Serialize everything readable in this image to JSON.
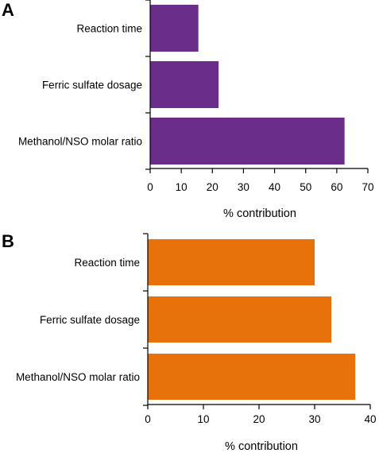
{
  "chart_data": [
    {
      "panel": "A",
      "type": "bar",
      "orientation": "horizontal",
      "categories": [
        "Reaction time",
        "Ferric sulfate dosage",
        "Methanol/NSO molar ratio"
      ],
      "values": [
        15.5,
        22,
        62.5
      ],
      "xlabel": "% contribution",
      "xlim": [
        0,
        70
      ],
      "xticks": [
        0,
        10,
        20,
        30,
        40,
        50,
        60,
        70
      ],
      "bar_color": "#6a2d8a",
      "grid": false,
      "legend": "none"
    },
    {
      "panel": "B",
      "type": "bar",
      "orientation": "horizontal",
      "categories": [
        "Reaction time",
        "Ferric sulfate dosage",
        "Methanol/NSO molar ratio"
      ],
      "values": [
        30,
        33,
        37.3
      ],
      "xlabel": "% contribution",
      "xlim": [
        0,
        40
      ],
      "xticks": [
        0,
        10,
        20,
        30,
        40
      ],
      "bar_color": "#e8710a",
      "grid": false,
      "legend": "none"
    }
  ]
}
